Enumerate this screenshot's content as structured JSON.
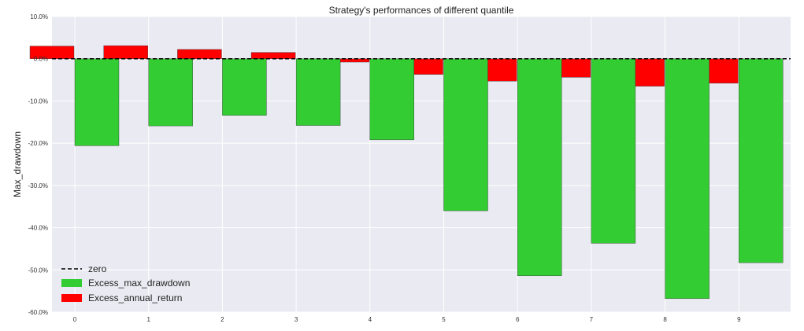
{
  "chart_data": {
    "type": "bar",
    "title": "Strategy's performances of different quantile",
    "xlabel": "",
    "ylabel": "Max_drawdown",
    "categories": [
      "0",
      "1",
      "2",
      "3",
      "4",
      "5",
      "6",
      "7",
      "8",
      "9"
    ],
    "ylim": [
      -60,
      10
    ],
    "y_ticks": [
      10,
      0,
      -10,
      -20,
      -30,
      -40,
      -50,
      -60
    ],
    "y_tick_labels": [
      "10.0%",
      "0.0%",
      "-10.0%",
      "-20.0%",
      "-30.0%",
      "-40.0%",
      "-50.0%",
      "-60.0%"
    ],
    "grid": true,
    "legend_position": "lower-left",
    "series": [
      {
        "name": "Excess_annual_return",
        "color": "#ff0000",
        "values": [
          3.0,
          3.1,
          2.2,
          1.5,
          -0.8,
          -3.7,
          -5.3,
          -4.4,
          -6.5,
          -5.8
        ]
      },
      {
        "name": "Excess_max_drawdown",
        "color": "#33cc33",
        "values": [
          -20.6,
          -15.9,
          -13.4,
          -15.8,
          -19.2,
          -36.0,
          -51.4,
          -43.7,
          -56.8,
          -48.3
        ]
      }
    ],
    "reference_line": {
      "name": "zero",
      "value": 0,
      "color": "#000000",
      "style": "dashed"
    },
    "legend": [
      {
        "label": "zero",
        "kind": "line",
        "color": "#000000"
      },
      {
        "label": "Excess_max_drawdown",
        "kind": "patch",
        "color": "#33cc33"
      },
      {
        "label": "Excess_annual_return",
        "kind": "patch",
        "color": "#ff0000"
      }
    ]
  }
}
